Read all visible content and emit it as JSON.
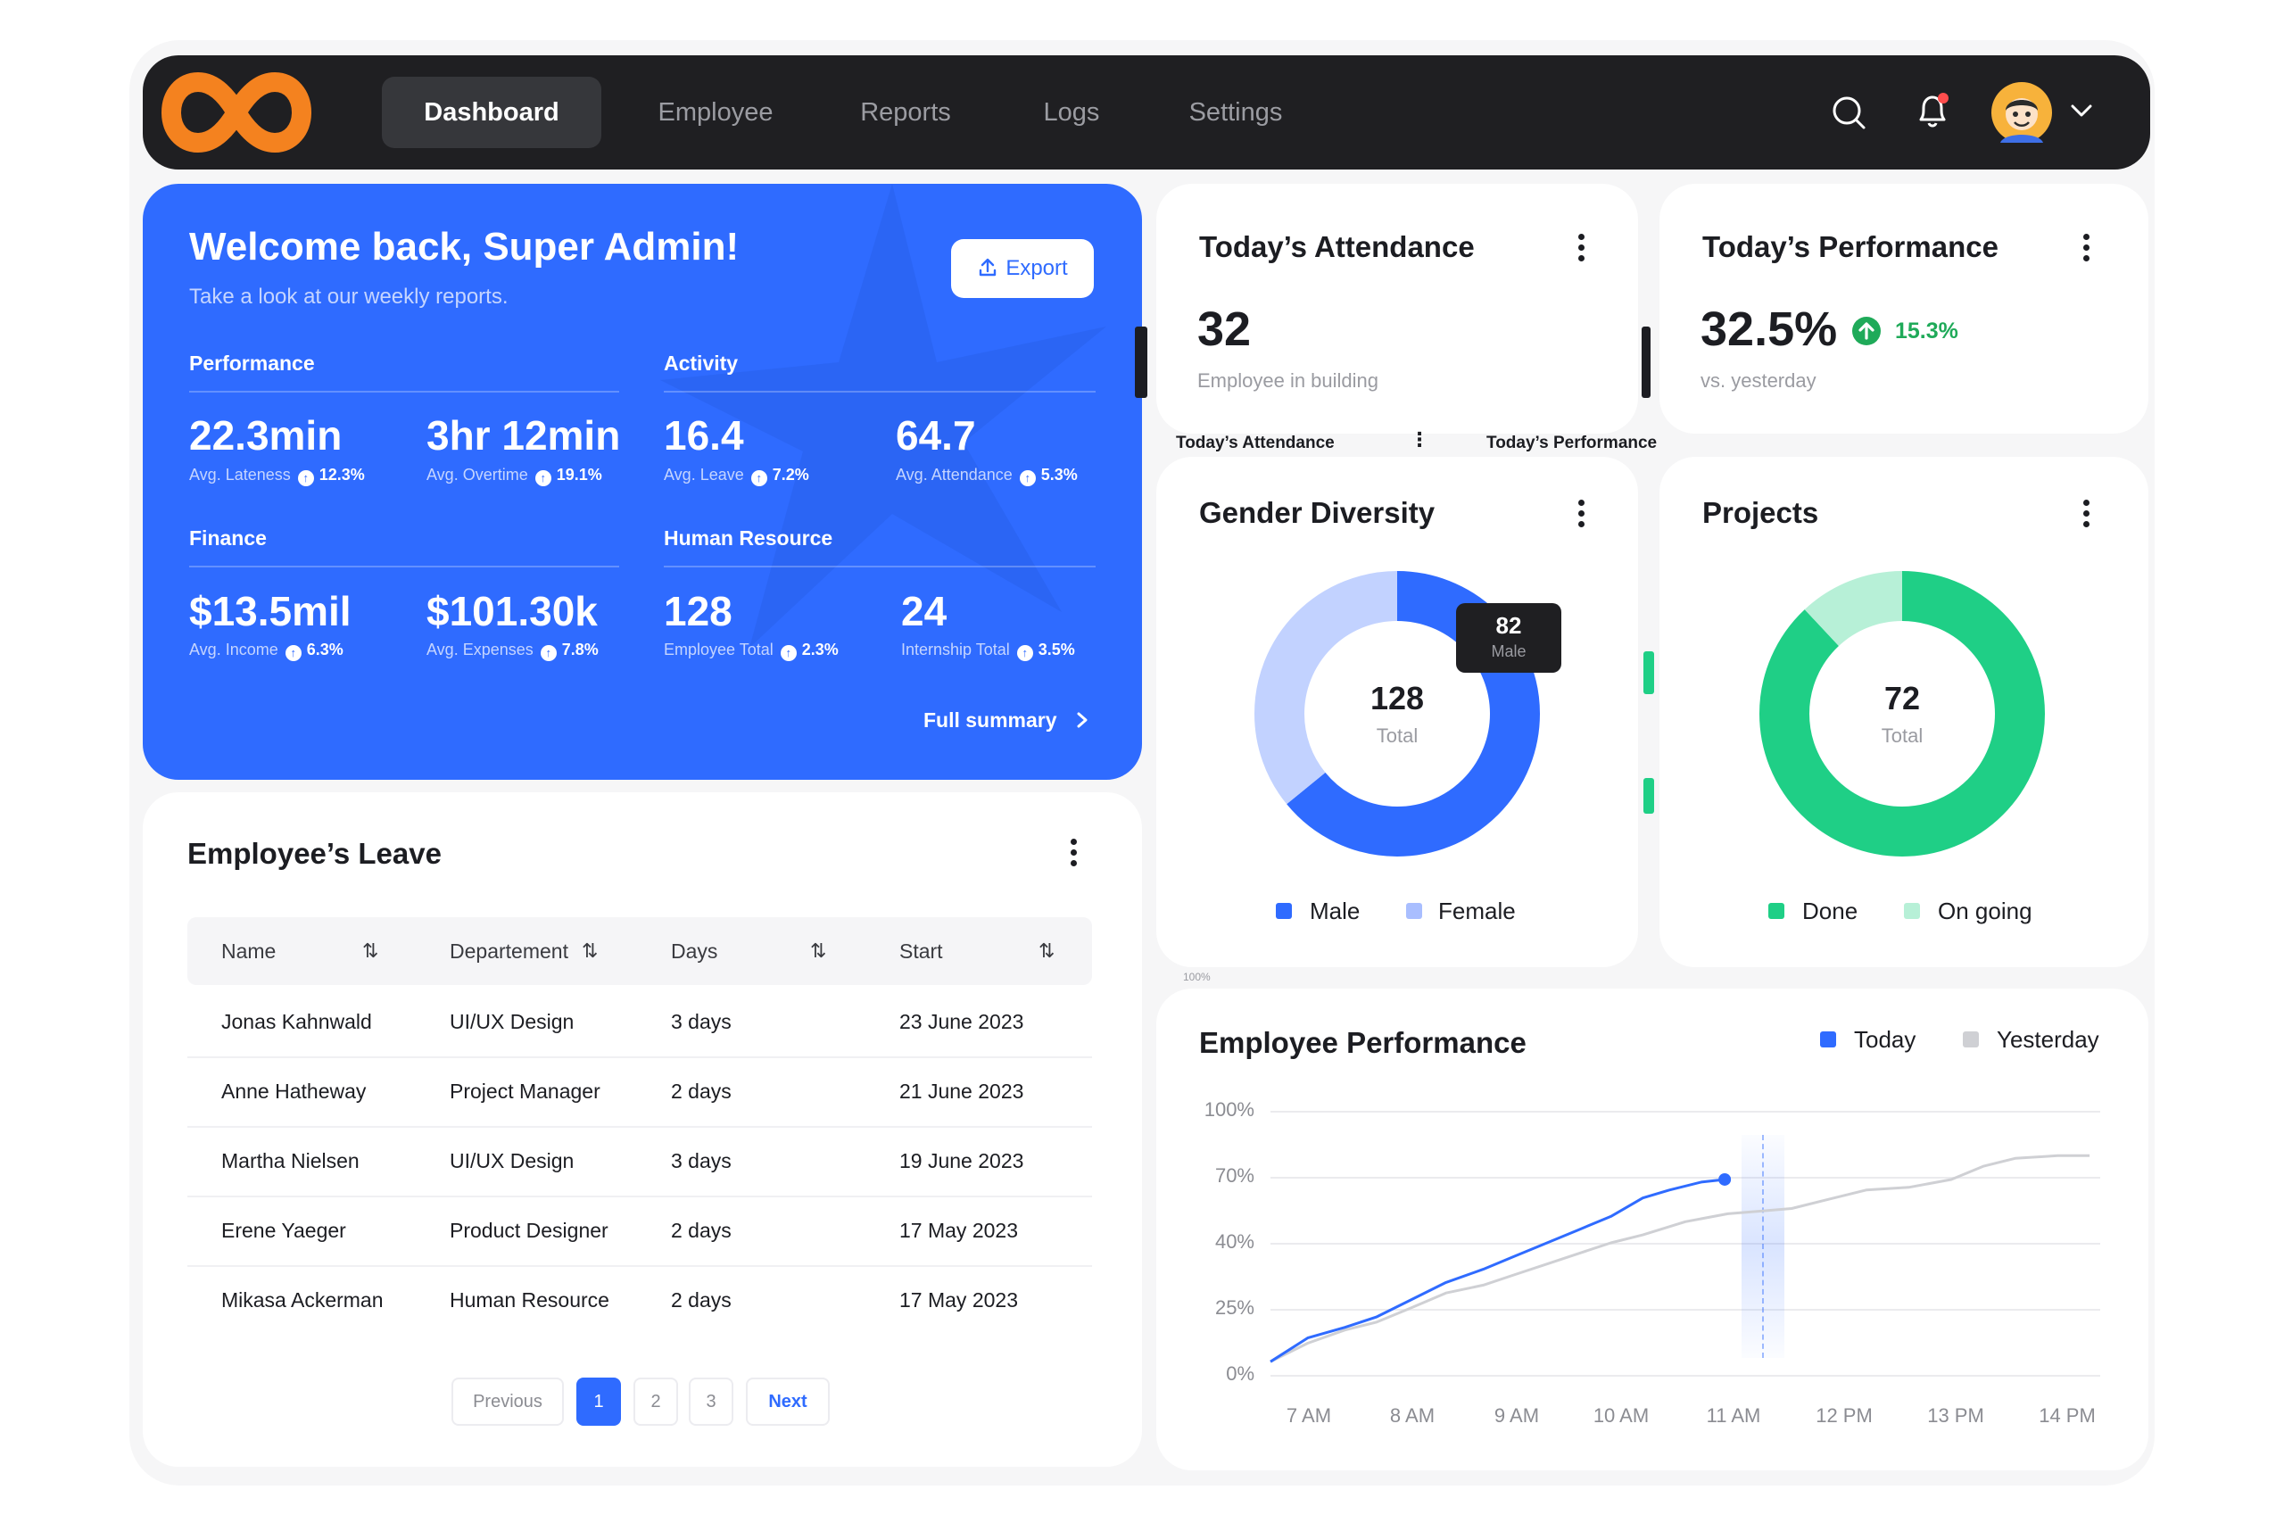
{
  "nav": {
    "items": [
      "Dashboard",
      "Employee",
      "Reports",
      "Logs",
      "Settings"
    ],
    "active": "Dashboard"
  },
  "welcome": {
    "title": "Welcome back, Super Admin!",
    "subtitle": "Take a look at our weekly reports.",
    "export_label": "Export",
    "full_summary": "Full summary",
    "sections": {
      "performance": "Performance",
      "activity": "Activity",
      "finance": "Finance",
      "human_resource": "Human Resource"
    },
    "metrics": [
      {
        "value": "22.3min",
        "label": "Avg. Lateness",
        "change": "12.3%"
      },
      {
        "value": "3hr 12min",
        "label": "Avg. Overtime",
        "change": "19.1%"
      },
      {
        "value": "16.4",
        "label": "Avg. Leave",
        "change": "7.2%"
      },
      {
        "value": "64.7",
        "label": "Avg. Attendance",
        "change": "5.3%"
      },
      {
        "value": "$13.5mil",
        "label": "Avg. Income",
        "change": "6.3%"
      },
      {
        "value": "$101.30k",
        "label": "Avg. Expenses",
        "change": "7.8%"
      },
      {
        "value": "128",
        "label": "Employee Total",
        "change": "2.3%"
      },
      {
        "value": "24",
        "label": "Internship Total",
        "change": "3.5%"
      }
    ]
  },
  "leave": {
    "title": "Employee’s Leave",
    "columns": [
      "Name",
      "Departement",
      "Days",
      "Start"
    ],
    "rows": [
      [
        "Jonas Kahnwald",
        "UI/UX Design",
        "3 days",
        "23 June 2023"
      ],
      [
        "Anne Hatheway",
        "Project Manager",
        "2 days",
        "21 June 2023"
      ],
      [
        "Martha Nielsen",
        "UI/UX Design",
        "3 days",
        "19 June 2023"
      ],
      [
        "Erene Yaeger",
        "Product Designer",
        "2 days",
        "17 May 2023"
      ],
      [
        "Mikasa Ackerman",
        "Human Resource",
        "2 days",
        "17 May 2023"
      ]
    ],
    "pagination": {
      "previous": "Previous",
      "pages": [
        "1",
        "2",
        "3"
      ],
      "current": "1",
      "next": "Next"
    }
  },
  "attendance": {
    "title": "Today’s Attendance",
    "value": "32",
    "subtitle": "Employee in building"
  },
  "performance": {
    "title": "Today’s Performance",
    "value": "32.5%",
    "change": "15.3%",
    "subtitle": "vs. yesterday"
  },
  "overlay_labels": {
    "attendance": "Today’s Attendance",
    "performance": "Today’s Performance",
    "scale": "100%"
  },
  "gender": {
    "title": "Gender Diversity",
    "total": "128",
    "total_label": "Total",
    "tooltip_value": "82",
    "tooltip_label": "Male",
    "legend": [
      "Male",
      "Female"
    ],
    "values": {
      "male": 82,
      "female": 46
    },
    "colors": {
      "male": "#2f6bff",
      "female": "#c2d2ff"
    }
  },
  "projects": {
    "title": "Projects",
    "total": "72",
    "total_label": "Total",
    "legend": [
      "Done",
      "On going"
    ],
    "values": {
      "done": 0.88,
      "ongoing": 0.12
    },
    "colors": {
      "done": "#1fcf86",
      "ongoing": "#b7f0d7"
    }
  },
  "chart_data": {
    "type": "line",
    "title": "Employee Performance",
    "x": [
      "7 AM",
      "8 AM",
      "9 AM",
      "10 AM",
      "11 AM",
      "12 PM",
      "13 PM",
      "14 PM"
    ],
    "y_ticks": [
      "100%",
      "70%",
      "40%",
      "25%",
      "0%"
    ],
    "series": [
      {
        "name": "Today",
        "color": "#2f6bff",
        "points": [
          [
            7.0,
            5
          ],
          [
            7.35,
            14
          ],
          [
            7.7,
            18
          ],
          [
            8.0,
            22
          ],
          [
            8.3,
            28
          ],
          [
            8.65,
            35
          ],
          [
            9.0,
            40
          ],
          [
            9.3,
            45
          ],
          [
            9.6,
            50
          ],
          [
            9.9,
            55
          ],
          [
            10.2,
            60
          ],
          [
            10.5,
            67
          ],
          [
            10.75,
            70
          ],
          [
            11.05,
            73
          ],
          [
            11.27,
            74
          ]
        ]
      },
      {
        "name": "Yesterday",
        "color": "#cfd0d4",
        "points": [
          [
            7.0,
            5
          ],
          [
            7.35,
            12
          ],
          [
            7.7,
            17
          ],
          [
            8.0,
            20
          ],
          [
            8.3,
            25
          ],
          [
            8.65,
            31
          ],
          [
            9.0,
            34
          ],
          [
            9.3,
            38
          ],
          [
            9.6,
            42
          ],
          [
            9.9,
            46
          ],
          [
            10.2,
            50
          ],
          [
            10.5,
            53
          ],
          [
            10.9,
            58
          ],
          [
            11.3,
            61
          ],
          [
            11.6,
            62
          ],
          [
            11.9,
            63
          ],
          [
            12.2,
            66
          ],
          [
            12.6,
            70
          ],
          [
            13.0,
            71
          ],
          [
            13.4,
            74
          ],
          [
            13.7,
            79
          ],
          [
            14.0,
            82
          ],
          [
            14.4,
            83
          ],
          [
            14.7,
            83
          ]
        ]
      }
    ],
    "highlight_x": "11 AM"
  }
}
